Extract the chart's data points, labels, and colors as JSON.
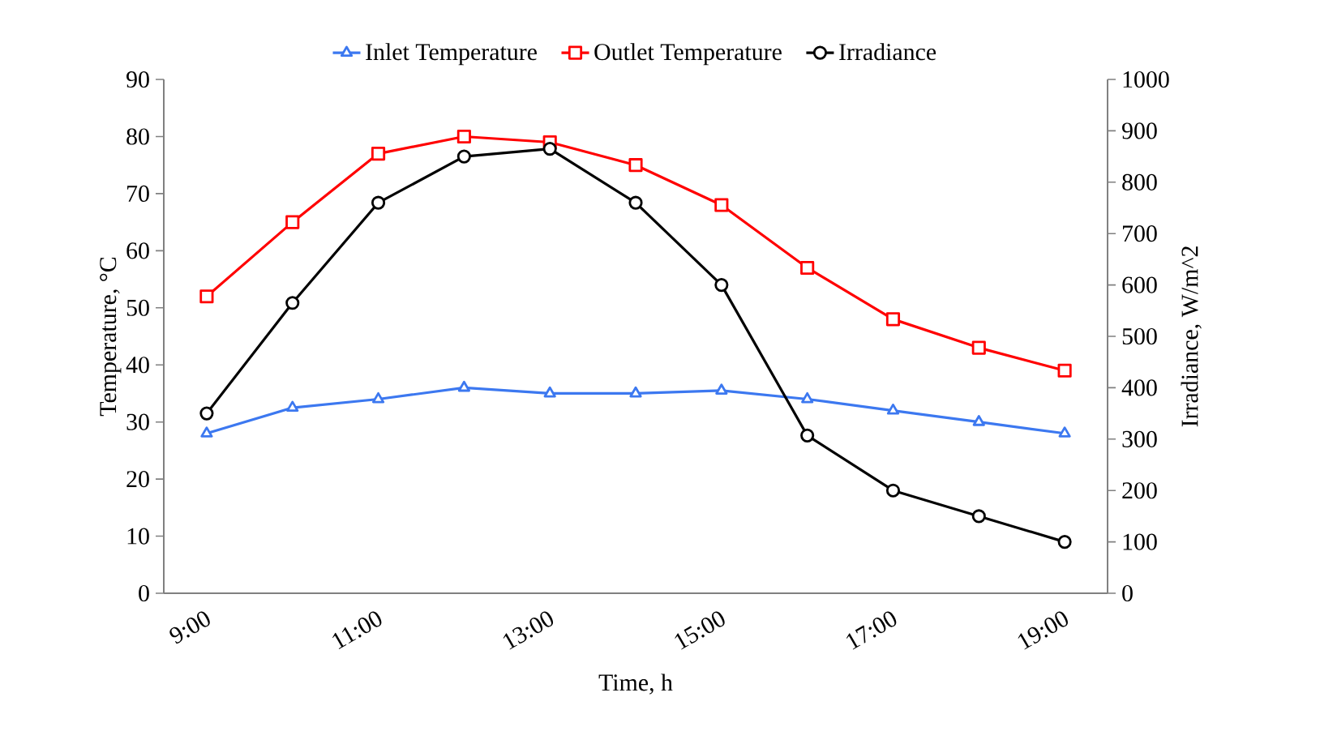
{
  "chart_data": {
    "type": "line",
    "xlabel": "Time, h",
    "ylabel": "Temperature, °C",
    "y2label": "Irradiance, W/m^2",
    "categories": [
      "9:00",
      null,
      "11:00",
      null,
      "13:00",
      null,
      "15:00",
      null,
      "17:00",
      null,
      "19:00"
    ],
    "series": [
      {
        "name": "Inlet Temperature",
        "color": "#3c78f0",
        "marker": "triangle",
        "values": [
          28,
          32.5,
          34,
          36,
          35,
          35,
          35.5,
          34,
          32,
          30,
          28
        ]
      },
      {
        "name": "Outlet Temperature",
        "color": "#ff0000",
        "marker": "square",
        "values": [
          52,
          65,
          77,
          80,
          79,
          75,
          68,
          57,
          48,
          43,
          39
        ]
      },
      {
        "name": "Irradiance",
        "color": "#000000",
        "marker": "circle",
        "axis": "y2",
        "values": [
          350,
          565,
          760,
          850,
          865,
          760,
          600,
          307,
          200,
          150,
          100
        ]
      }
    ],
    "ylim": [
      0,
      90
    ],
    "yticks": [
      0,
      10,
      20,
      30,
      40,
      50,
      60,
      70,
      80,
      90
    ],
    "y2lim": [
      0,
      1000
    ],
    "y2ticks": [
      0,
      100,
      200,
      300,
      400,
      500,
      600,
      700,
      800,
      900,
      1000
    ],
    "legend": "top",
    "grid": false,
    "line_style": "solid"
  }
}
